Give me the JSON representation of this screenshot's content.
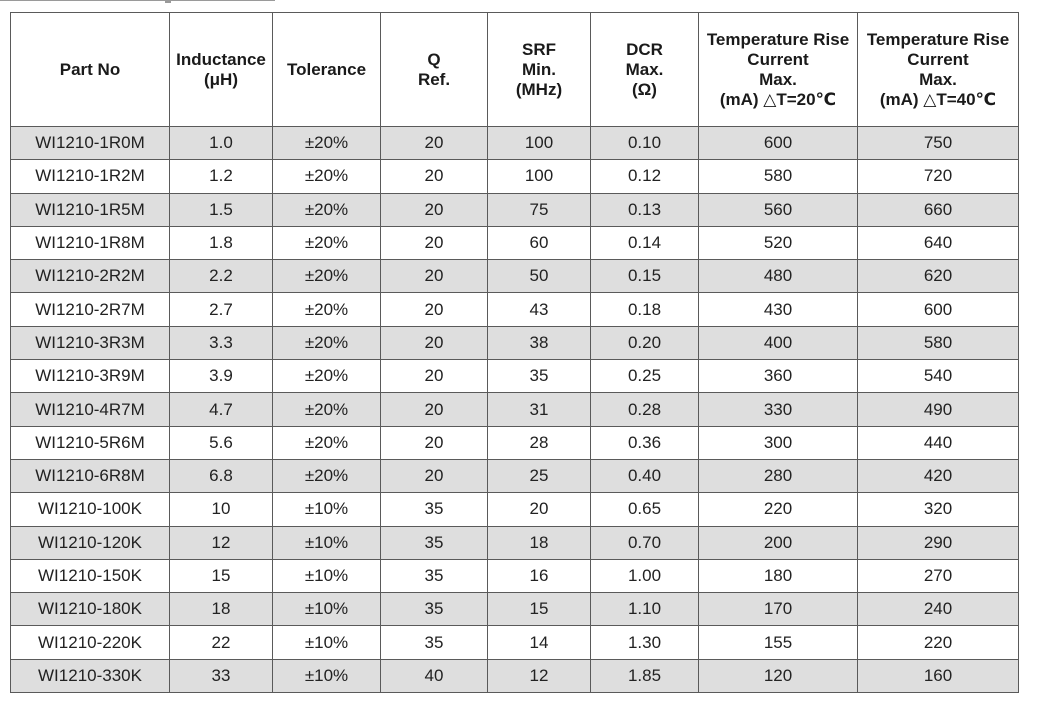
{
  "table": {
    "headers": [
      [
        "Part No"
      ],
      [
        "Inductance",
        "(μH)"
      ],
      [
        "Tolerance"
      ],
      [
        "Q",
        "Ref."
      ],
      [
        "SRF",
        "Min.",
        "(MHz)"
      ],
      [
        "DCR",
        "Max.",
        "(Ω)"
      ],
      [
        "Temperature Rise",
        "Current",
        "Max.",
        "(mA) △T=20℃"
      ],
      [
        "Temperature Rise",
        "Current",
        "Max.",
        "(mA) △T=40℃"
      ]
    ],
    "rows": [
      [
        "WI1210-1R0M",
        "1.0",
        "±20%",
        "20",
        "100",
        "0.10",
        "600",
        "750"
      ],
      [
        "WI1210-1R2M",
        "1.2",
        "±20%",
        "20",
        "100",
        "0.12",
        "580",
        "720"
      ],
      [
        "WI1210-1R5M",
        "1.5",
        "±20%",
        "20",
        "75",
        "0.13",
        "560",
        "660"
      ],
      [
        "WI1210-1R8M",
        "1.8",
        "±20%",
        "20",
        "60",
        "0.14",
        "520",
        "640"
      ],
      [
        "WI1210-2R2M",
        "2.2",
        "±20%",
        "20",
        "50",
        "0.15",
        "480",
        "620"
      ],
      [
        "WI1210-2R7M",
        "2.7",
        "±20%",
        "20",
        "43",
        "0.18",
        "430",
        "600"
      ],
      [
        "WI1210-3R3M",
        "3.3",
        "±20%",
        "20",
        "38",
        "0.20",
        "400",
        "580"
      ],
      [
        "WI1210-3R9M",
        "3.9",
        "±20%",
        "20",
        "35",
        "0.25",
        "360",
        "540"
      ],
      [
        "WI1210-4R7M",
        "4.7",
        "±20%",
        "20",
        "31",
        "0.28",
        "330",
        "490"
      ],
      [
        "WI1210-5R6M",
        "5.6",
        "±20%",
        "20",
        "28",
        "0.36",
        "300",
        "440"
      ],
      [
        "WI1210-6R8M",
        "6.8",
        "±20%",
        "20",
        "25",
        "0.40",
        "280",
        "420"
      ],
      [
        "WI1210-100K",
        "10",
        "±10%",
        "35",
        "20",
        "0.65",
        "220",
        "320"
      ],
      [
        "WI1210-120K",
        "12",
        "±10%",
        "35",
        "18",
        "0.70",
        "200",
        "290"
      ],
      [
        "WI1210-150K",
        "15",
        "±10%",
        "35",
        "16",
        "1.00",
        "180",
        "270"
      ],
      [
        "WI1210-180K",
        "18",
        "±10%",
        "35",
        "15",
        "1.10",
        "170",
        "240"
      ],
      [
        "WI1210-220K",
        "22",
        "±10%",
        "35",
        "14",
        "1.30",
        "155",
        "220"
      ],
      [
        "WI1210-330K",
        "33",
        "±10%",
        "40",
        "12",
        "1.85",
        "120",
        "160"
      ]
    ]
  },
  "colors": {
    "shaded_row": "#dedede",
    "plain_row": "#ffffff",
    "border": "#5a5a5a",
    "text": "#1a1a1a"
  }
}
